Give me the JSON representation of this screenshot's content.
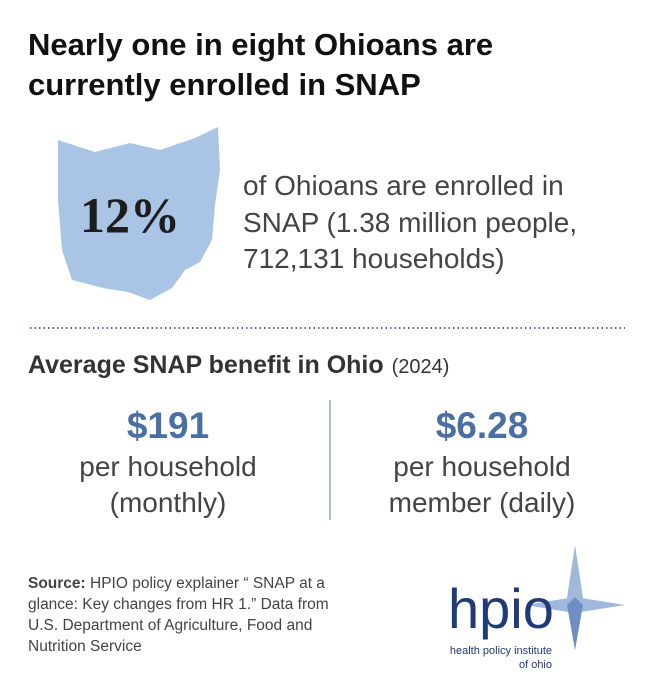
{
  "header": {
    "title_lines": [
      "Nearly one in eight Ohioans are",
      "currently enrolled in SNAP"
    ]
  },
  "highlight": {
    "value": "12%",
    "text_lines": [
      "of Ohioans are enrolled in",
      "SNAP (1.38 million people,",
      "712,131 households)"
    ]
  },
  "benefits": {
    "title": "Average SNAP benefit in Ohio",
    "year": "(2024)",
    "items": [
      {
        "value": "$191",
        "label_lines": [
          "per household",
          "(monthly)"
        ]
      },
      {
        "value": "$6.28",
        "label_lines": [
          "per household",
          "member (daily)"
        ]
      }
    ]
  },
  "source": {
    "label": "Source:",
    "text_lines": [
      " HPIO policy explainer “ SNAP at a",
      "glance: Key changes from HR 1.” Data from",
      "U.S. Department of Agriculture, Food and",
      "Nutrition Service"
    ]
  },
  "logo": {
    "name": "hpio",
    "tagline_lines": [
      "health policy institute",
      "of ohio"
    ]
  }
}
